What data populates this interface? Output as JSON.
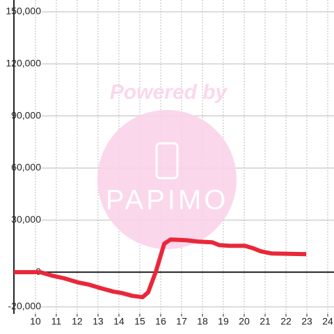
{
  "chart_data": {
    "type": "line",
    "watermark": {
      "title": "Powered by",
      "brand": "PAPIMO"
    },
    "x": [
      8.97,
      10.23,
      10.8,
      11.4,
      12.07,
      12.57,
      13.13,
      13.73,
      14.13,
      14.63,
      15.13,
      15.4,
      15.77,
      16.17,
      16.47,
      17.23,
      17.8,
      18.47,
      18.8,
      19.3,
      20.03,
      20.37,
      20.8,
      21.3,
      22.97
    ],
    "series": [
      {
        "color": "#e8283a",
        "values": [
          0,
          0,
          -2000,
          -3600,
          -6000,
          -7200,
          -9200,
          -11200,
          -12000,
          -13600,
          -14400,
          -11600,
          400,
          16400,
          18800,
          18400,
          17600,
          17200,
          15600,
          15200,
          15200,
          14000,
          12000,
          10800,
          10400
        ]
      }
    ],
    "xlim": [
      8.97,
      24.3
    ],
    "ylim": [
      -24000,
      150000
    ],
    "xticks": [
      10,
      11,
      12,
      13,
      14,
      15,
      16,
      17,
      18,
      19,
      20,
      21,
      22,
      23,
      24
    ],
    "yticks": [
      {
        "value": -20000,
        "label": "-20,000"
      },
      0,
      {
        "value": 30000,
        "label": "30,000"
      },
      {
        "value": 60000,
        "label": "60,000"
      },
      {
        "value": 90000,
        "label": "90,000"
      },
      {
        "value": 120000,
        "label": "120,000"
      },
      {
        "value": 150000,
        "label": "150,000"
      }
    ],
    "grid": true
  }
}
